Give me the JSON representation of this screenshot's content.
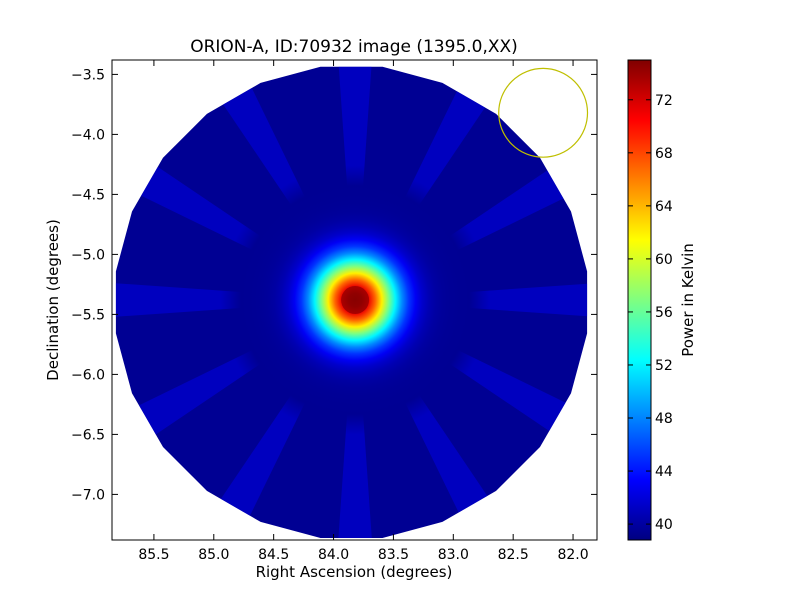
{
  "chart_data": {
    "type": "heatmap",
    "title": "ORION-A, ID:70932 image (1395.0,XX)",
    "xlabel": "Right Ascension (degrees)",
    "ylabel": "Declination (degrees)",
    "colorbar_label": "Power in Kelvin",
    "xlim": [
      85.85,
      81.8
    ],
    "ylim": [
      -7.38,
      -3.38
    ],
    "x_ticks": [
      {
        "value": 85.5,
        "label": "85.5"
      },
      {
        "value": 85.0,
        "label": "85.0"
      },
      {
        "value": 84.5,
        "label": "84.5"
      },
      {
        "value": 84.0,
        "label": "84.0"
      },
      {
        "value": 83.5,
        "label": "83.5"
      },
      {
        "value": 83.0,
        "label": "83.0"
      },
      {
        "value": 82.5,
        "label": "82.5"
      },
      {
        "value": 82.0,
        "label": "82.0"
      }
    ],
    "y_ticks": [
      {
        "value": -3.5,
        "label": "−3.5"
      },
      {
        "value": -4.0,
        "label": "−4.0"
      },
      {
        "value": -4.5,
        "label": "−4.5"
      },
      {
        "value": -5.0,
        "label": "−5.0"
      },
      {
        "value": -5.5,
        "label": "−5.5"
      },
      {
        "value": -6.0,
        "label": "−6.0"
      },
      {
        "value": -6.5,
        "label": "−6.5"
      },
      {
        "value": -7.0,
        "label": "−7.0"
      }
    ],
    "colorbar_range": [
      38.8,
      75.0
    ],
    "colorbar_ticks": [
      {
        "value": 40,
        "label": "40"
      },
      {
        "value": 44,
        "label": "44"
      },
      {
        "value": 48,
        "label": "48"
      },
      {
        "value": 52,
        "label": "52"
      },
      {
        "value": 56,
        "label": "56"
      },
      {
        "value": 60,
        "label": "60"
      },
      {
        "value": 64,
        "label": "64"
      },
      {
        "value": 68,
        "label": "68"
      },
      {
        "value": 72,
        "label": "72"
      }
    ],
    "colormap": "jet",
    "map_center": {
      "ra": 83.85,
      "dec": -5.4
    },
    "map_radius_deg": 1.98,
    "background_level": 39.5,
    "peak": {
      "ra": 83.82,
      "dec": -5.38,
      "value": 75.0
    },
    "source_fwhm_deg": 0.55,
    "beam_circle": {
      "ra": 82.25,
      "dec": -3.82,
      "radius_deg": 0.37,
      "color": "#bfbf00"
    }
  }
}
